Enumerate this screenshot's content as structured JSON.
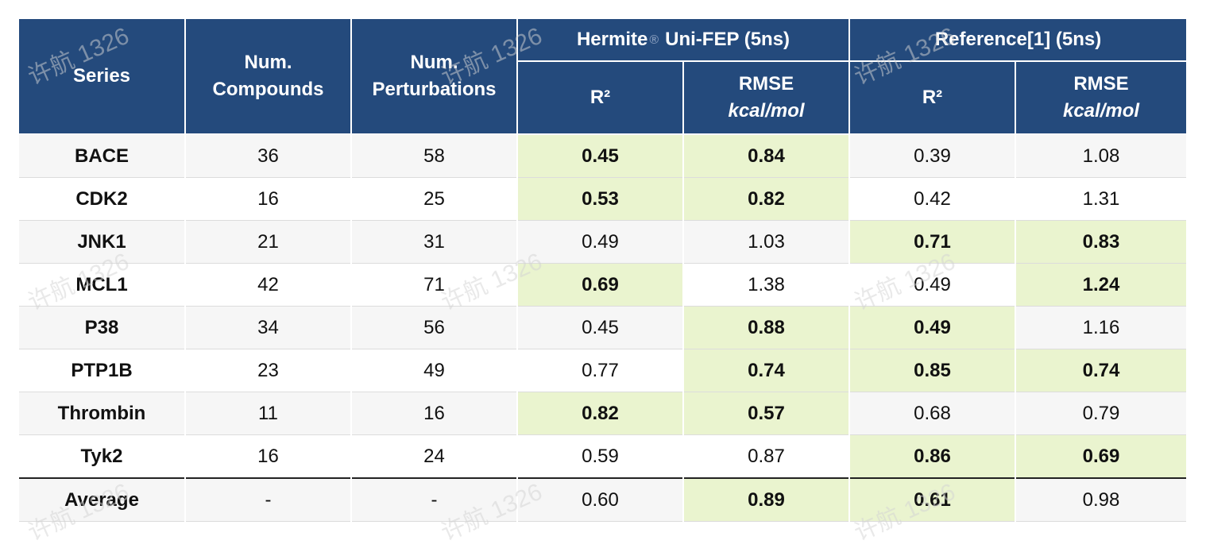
{
  "table": {
    "headers": {
      "series": "Series",
      "num_compounds": [
        "Num.",
        "Compounds"
      ],
      "num_perturbations": [
        "Num.",
        "Perturbations"
      ],
      "group_hermite": {
        "prefix": "Hermite",
        "symbol": "®",
        "suffix": "Uni-FEP (5ns)"
      },
      "group_reference": "Reference[1] (5ns)",
      "r2": "R²",
      "rmse": "RMSE",
      "rmse_unit": "kcal/mol"
    },
    "rows": [
      {
        "series": "BACE",
        "compounds": "36",
        "perturbations": "58",
        "h_r2": "0.45",
        "h_rmse": "0.84",
        "r_r2": "0.39",
        "r_rmse": "1.08"
      },
      {
        "series": "CDK2",
        "compounds": "16",
        "perturbations": "25",
        "h_r2": "0.53",
        "h_rmse": "0.82",
        "r_r2": "0.42",
        "r_rmse": "1.31"
      },
      {
        "series": "JNK1",
        "compounds": "21",
        "perturbations": "31",
        "h_r2": "0.49",
        "h_rmse": "1.03",
        "r_r2": "0.71",
        "r_rmse": "0.83"
      },
      {
        "series": "MCL1",
        "compounds": "42",
        "perturbations": "71",
        "h_r2": "0.69",
        "h_rmse": "1.38",
        "r_r2": "0.49",
        "r_rmse": "1.24"
      },
      {
        "series": "P38",
        "compounds": "34",
        "perturbations": "56",
        "h_r2": "0.45",
        "h_rmse": "0.88",
        "r_r2": "0.49",
        "r_rmse": "1.16"
      },
      {
        "series": "PTP1B",
        "compounds": "23",
        "perturbations": "49",
        "h_r2": "0.77",
        "h_rmse": "0.74",
        "r_r2": "0.85",
        "r_rmse": "0.74"
      },
      {
        "series": "Thrombin",
        "compounds": "11",
        "perturbations": "16",
        "h_r2": "0.82",
        "h_rmse": "0.57",
        "r_r2": "0.68",
        "r_rmse": "0.79"
      },
      {
        "series": "Tyk2",
        "compounds": "16",
        "perturbations": "24",
        "h_r2": "0.59",
        "h_rmse": "0.87",
        "r_r2": "0.86",
        "r_rmse": "0.69"
      }
    ],
    "average": {
      "series": "Average",
      "compounds": "-",
      "perturbations": "-",
      "h_r2": "0.60",
      "h_rmse": "0.89",
      "r_r2": "0.61",
      "r_rmse": "0.98"
    }
  },
  "watermark": "许航 1326",
  "colors": {
    "header_bg": "#244a7c",
    "highlight_bg": "#eaf4cf",
    "row_alt_bg": "#f6f6f6"
  }
}
